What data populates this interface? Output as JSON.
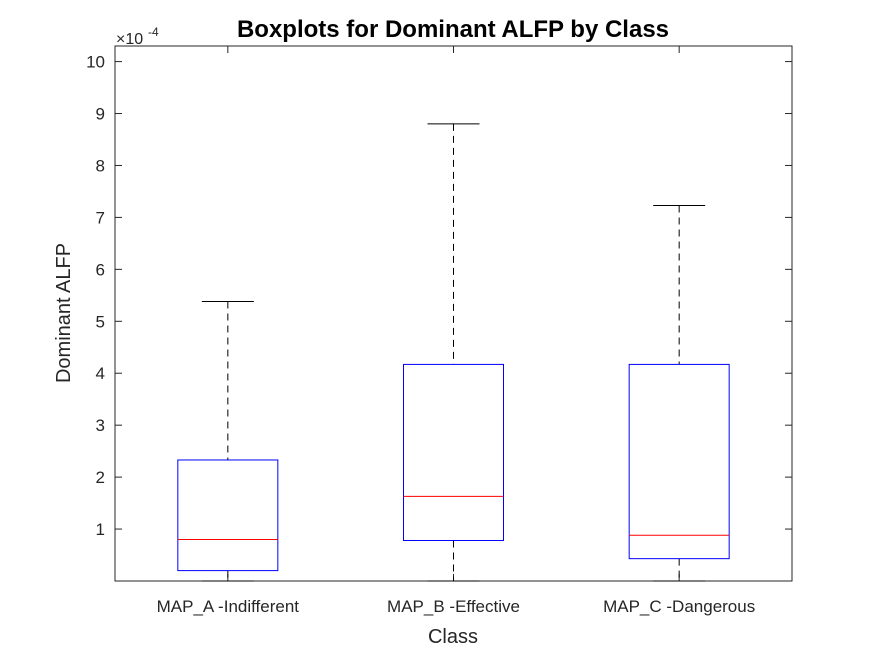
{
  "chart_data": {
    "type": "boxplot",
    "title": "Boxplots for Dominant ALFP by Class",
    "xlabel": "Class",
    "ylabel": "Dominant ALFP",
    "y_exponent_label": "×10",
    "y_exponent": "-4",
    "ylim": [
      0,
      10.3
    ],
    "yticks": [
      "1",
      "2",
      "3",
      "4",
      "5",
      "6",
      "7",
      "8",
      "9",
      "10"
    ],
    "categories": [
      "MAP_A -Indifferent",
      "MAP_B -Effective",
      "MAP_C -Dangerous"
    ],
    "boxes": [
      {
        "category": "MAP_A -Indifferent",
        "min": 0.0,
        "q1": 0.2,
        "median": 0.8,
        "q3": 2.33,
        "max": 5.38
      },
      {
        "category": "MAP_B -Effective",
        "min": 0.0,
        "q1": 0.78,
        "median": 1.63,
        "q3": 4.17,
        "max": 8.8
      },
      {
        "category": "MAP_C -Dangerous",
        "min": 0.0,
        "q1": 0.43,
        "median": 0.88,
        "q3": 4.17,
        "max": 7.23
      }
    ],
    "grid": false,
    "colors": {
      "box": "#0000ff",
      "median": "#ff0000",
      "whisker": "#000000",
      "axis": "#262626"
    }
  }
}
